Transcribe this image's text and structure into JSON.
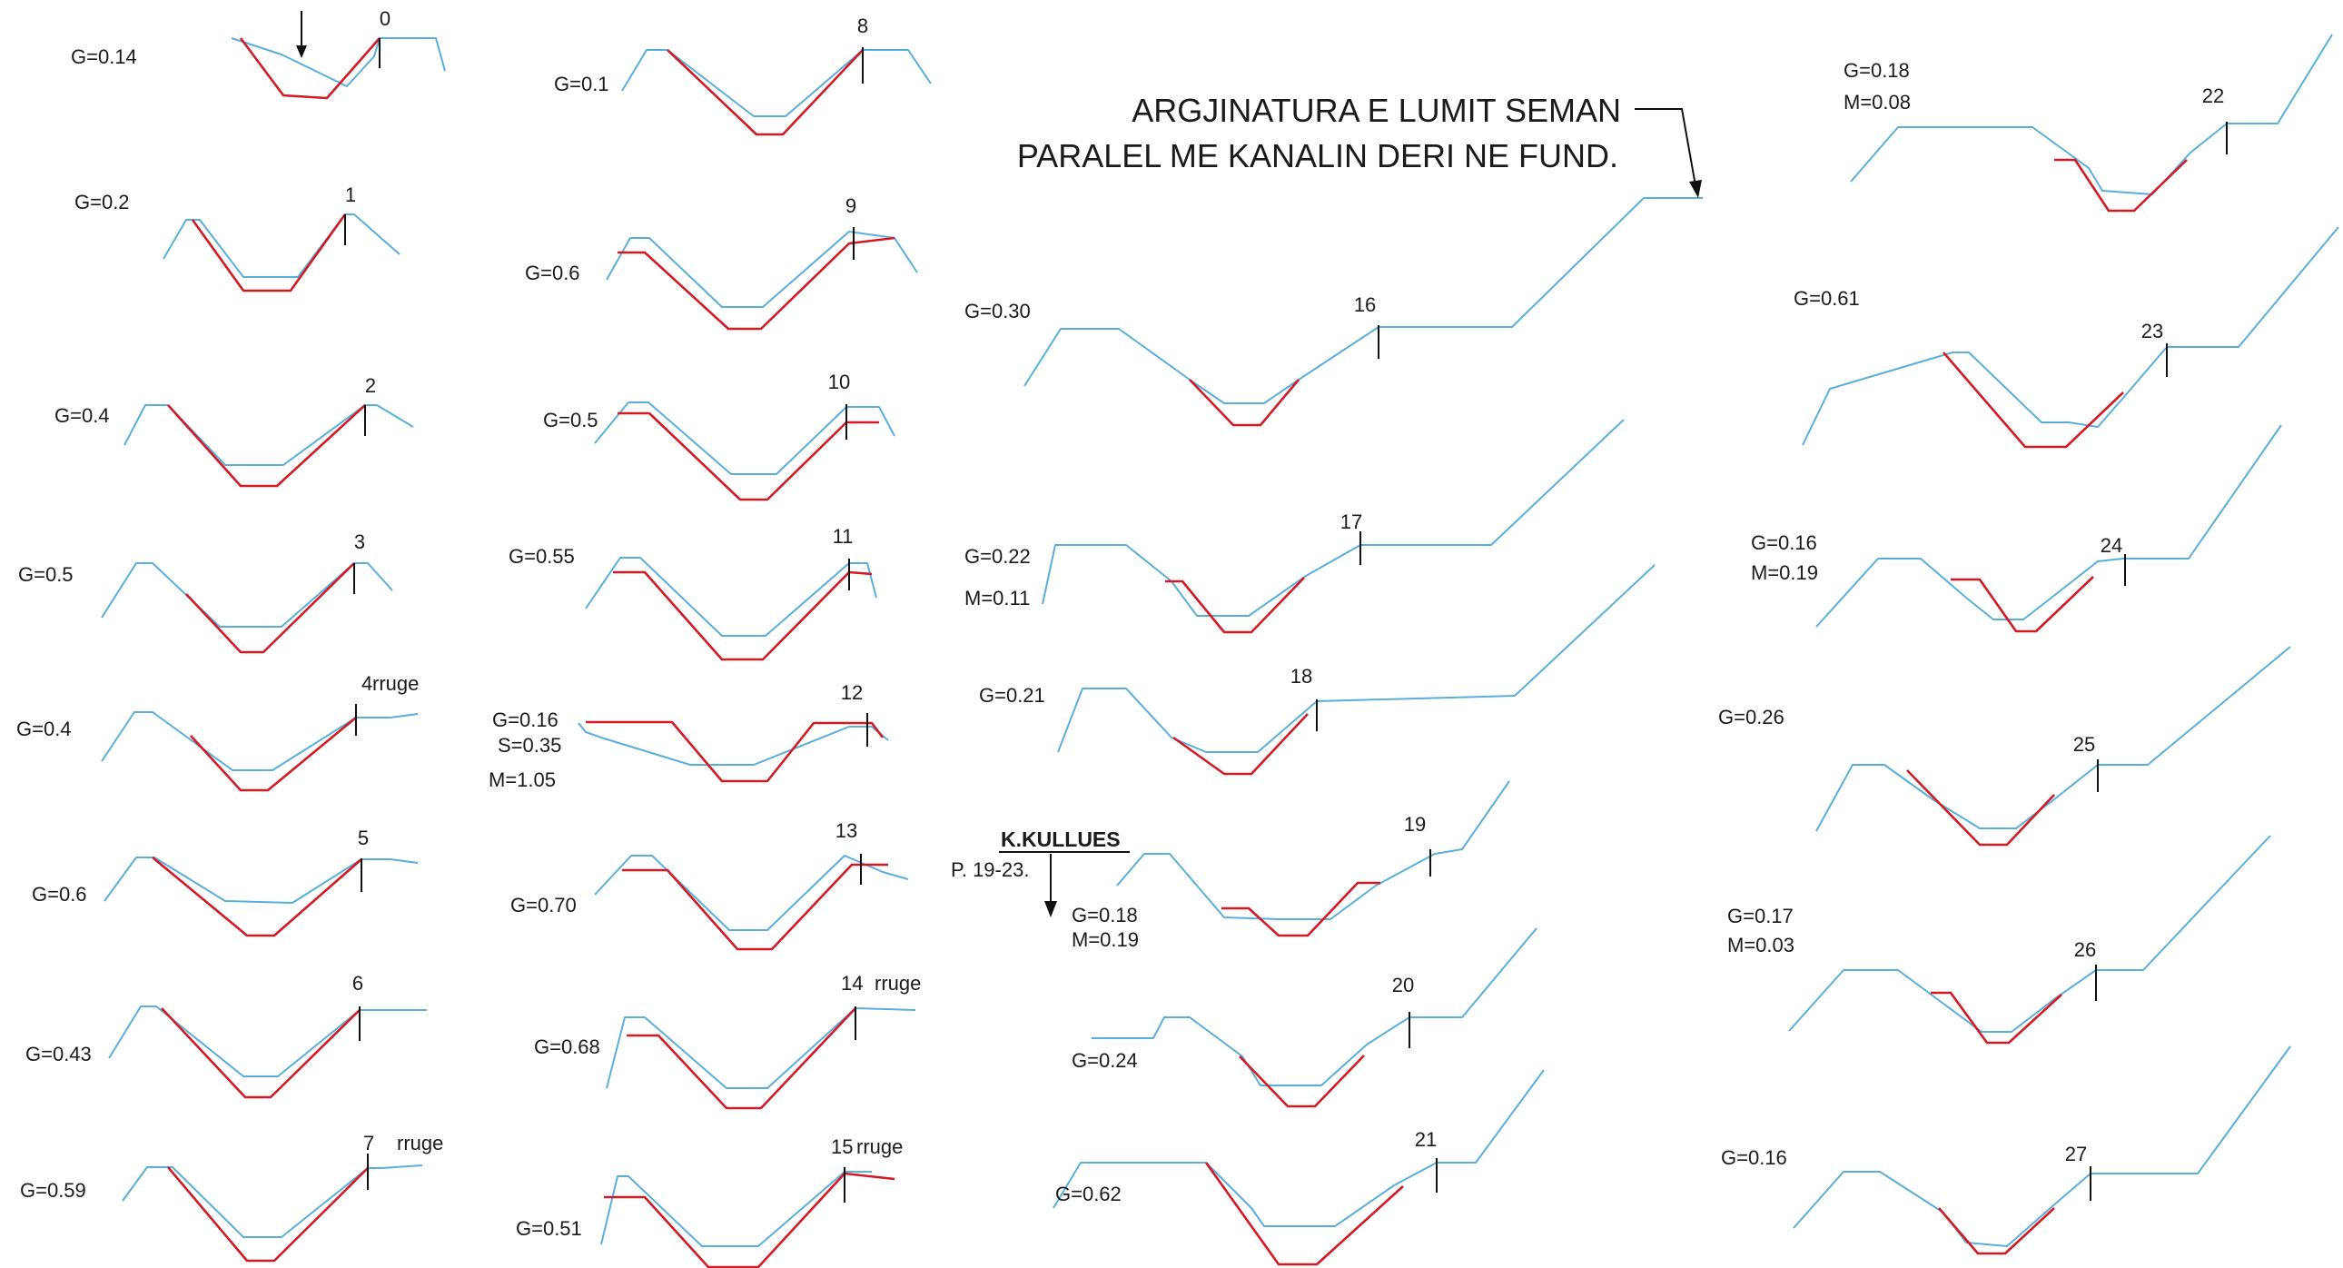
{
  "title_lines": [
    "ARGJINATURA E LUMIT SEMAN",
    "PARALEL ME KANALIN DERI NE FUND."
  ],
  "note": {
    "heading": "K.KULLUES",
    "sub": "P. 19-23."
  },
  "colors": {
    "ground": "#5aaedc",
    "design": "#d21a24",
    "text": "#1a1a1a"
  },
  "sections": [
    {
      "id": "0",
      "labels": [
        "G=0.14"
      ]
    },
    {
      "id": "1",
      "labels": [
        "G=0.2"
      ]
    },
    {
      "id": "2",
      "labels": [
        "G=0.4"
      ]
    },
    {
      "id": "3",
      "labels": [
        "G=0.5"
      ]
    },
    {
      "id": "4",
      "labels": [
        "G=0.4"
      ],
      "tag": "rruge"
    },
    {
      "id": "5",
      "labels": [
        "G=0.6"
      ]
    },
    {
      "id": "6",
      "labels": [
        "G=0.43"
      ]
    },
    {
      "id": "7",
      "labels": [
        "G=0.59"
      ],
      "tag": "rruge"
    },
    {
      "id": "8",
      "labels": [
        "G=0.1"
      ]
    },
    {
      "id": "9",
      "labels": [
        "G=0.6"
      ]
    },
    {
      "id": "10",
      "labels": [
        "G=0.5"
      ]
    },
    {
      "id": "11",
      "labels": [
        "G=0.55"
      ]
    },
    {
      "id": "12",
      "labels": [
        "G=0.16",
        "S=0.35",
        "M=1.05"
      ]
    },
    {
      "id": "13",
      "labels": [
        "G=0.70"
      ]
    },
    {
      "id": "14",
      "labels": [
        "G=0.68"
      ],
      "tag": "rruge"
    },
    {
      "id": "15",
      "labels": [
        "G=0.51"
      ],
      "tag": "rruge"
    },
    {
      "id": "16",
      "labels": [
        "G=0.30"
      ]
    },
    {
      "id": "17",
      "labels": [
        "G=0.22",
        "M=0.11"
      ]
    },
    {
      "id": "18",
      "labels": [
        "G=0.21"
      ]
    },
    {
      "id": "19",
      "labels": [
        "G=0.18",
        "M=0.19"
      ]
    },
    {
      "id": "20",
      "labels": [
        "G=0.24"
      ]
    },
    {
      "id": "21",
      "labels": [
        "G=0.62"
      ]
    },
    {
      "id": "22",
      "labels": [
        "G=0.18",
        "M=0.08"
      ]
    },
    {
      "id": "23",
      "labels": [
        "G=0.61"
      ]
    },
    {
      "id": "24",
      "labels": [
        "G=0.16",
        "M=0.19"
      ]
    },
    {
      "id": "25",
      "labels": [
        "G=0.26"
      ]
    },
    {
      "id": "26",
      "labels": [
        "G=0.17",
        "M=0.03"
      ]
    },
    {
      "id": "27",
      "labels": [
        "G=0.16"
      ]
    }
  ]
}
